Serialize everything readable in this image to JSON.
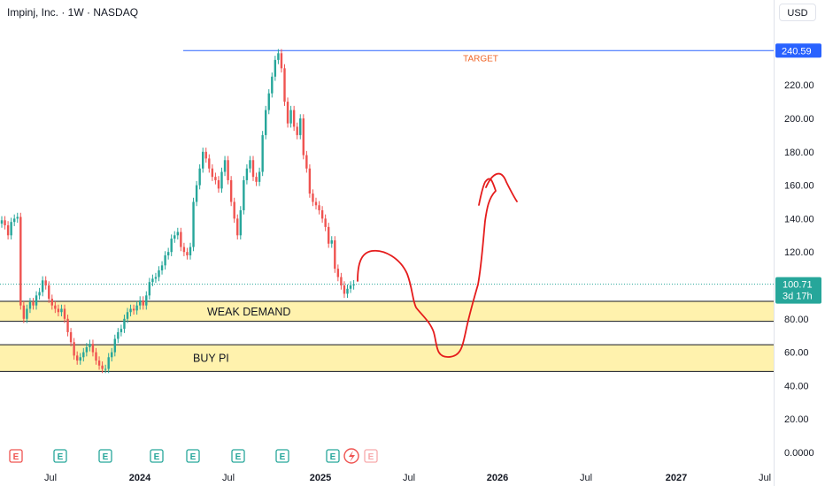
{
  "header": {
    "title": "Impinj, Inc. · 1W · NASDAQ",
    "currency": "USD"
  },
  "chart_data": {
    "type": "candlestick",
    "title": "Impinj, Inc. · 1W · NASDAQ",
    "ylim": [
      -3,
      247
    ],
    "y_ticks": [
      "0.0000",
      "20.00",
      "40.00",
      "60.00",
      "80.00",
      "100.00",
      "120.00",
      "140.00",
      "160.00",
      "180.00",
      "200.00",
      "220.00"
    ],
    "x_ticks": [
      "Jul",
      "2024",
      "Jul",
      "2025",
      "Jul",
      "2026",
      "Jul",
      "2027",
      "Jul"
    ],
    "price_labels": {
      "target": "240.59",
      "last": "100.71",
      "countdown": "3d 17h"
    },
    "colors": {
      "up": "#26a69a",
      "down": "#ef5350",
      "target_line": "#2962ff",
      "last_price": "#26a69a",
      "zone_fill": "#fff2ad",
      "drawing": "#e51c1c"
    },
    "target_level": 240.59,
    "target_label": "TARGET",
    "zones": [
      {
        "label": "WEAK DEMAND",
        "low": 78.5,
        "high": 90.5
      },
      {
        "label": "BUY PI",
        "low": 48.5,
        "high": 64.5
      }
    ],
    "earnings_markers": [
      "E",
      "E",
      "E",
      "E",
      "E",
      "E",
      "E",
      "E",
      "E"
    ],
    "last_price": 100.71,
    "candles_close": [
      139,
      136,
      130,
      138,
      140,
      141,
      88,
      80,
      86,
      90,
      88,
      94,
      96,
      103,
      100,
      92,
      88,
      86,
      84,
      86,
      80,
      72,
      66,
      58,
      55,
      57,
      60,
      63,
      65,
      60,
      55,
      52,
      50,
      50,
      57,
      60,
      68,
      72,
      74,
      80,
      84,
      86,
      85,
      88,
      91,
      88,
      94,
      102,
      104,
      105,
      109,
      112,
      118,
      120,
      128,
      130,
      132,
      123,
      120,
      118,
      123,
      150,
      160,
      170,
      180,
      176,
      170,
      165,
      163,
      158,
      168,
      175,
      163,
      150,
      140,
      130,
      145,
      163,
      170,
      175,
      165,
      162,
      168,
      190,
      205,
      215,
      225,
      235,
      239,
      230,
      210,
      197,
      205,
      195,
      190,
      200,
      178,
      170,
      155,
      150,
      148,
      145,
      140,
      135,
      125,
      127,
      110,
      105,
      100,
      95,
      98,
      100,
      100.71
    ]
  }
}
